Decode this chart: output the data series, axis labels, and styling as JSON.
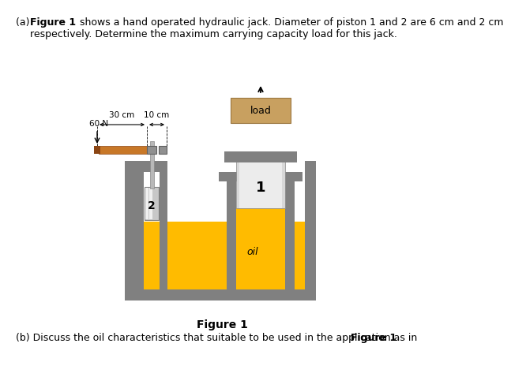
{
  "bg_color": "#ffffff",
  "gray_wall": "#808080",
  "gray_mid": "#a0a0a0",
  "gray_light": "#c8c8c8",
  "gray_silver": "#d8d8d8",
  "oil_color": "#FFBB00",
  "load_color": "#C8A060",
  "handle_color": "#C87828",
  "handle_dark": "#8B4513",
  "black": "#000000",
  "text_a_part1": "(a) ",
  "text_a_bold": "Figure 1",
  "text_a_rest": " shows a hand operated hydraulic jack. Diameter of piston 1 and 2 are 6 cm and 2 cm",
  "text_a_line2": "    respectively. Determine the maximum carrying capacity load for this jack.",
  "text_b_pre": "(b) Discuss the oil characteristics that suitable to be used in the application as in ",
  "text_b_bold": "Figure 1",
  "text_b_suf": ".",
  "caption": "Figure 1",
  "label_1": "1",
  "label_2": "2",
  "label_load": "load",
  "label_oil": "oil",
  "label_60N": "60 N",
  "label_30cm": "30 cm",
  "label_10cm": "10 cm"
}
